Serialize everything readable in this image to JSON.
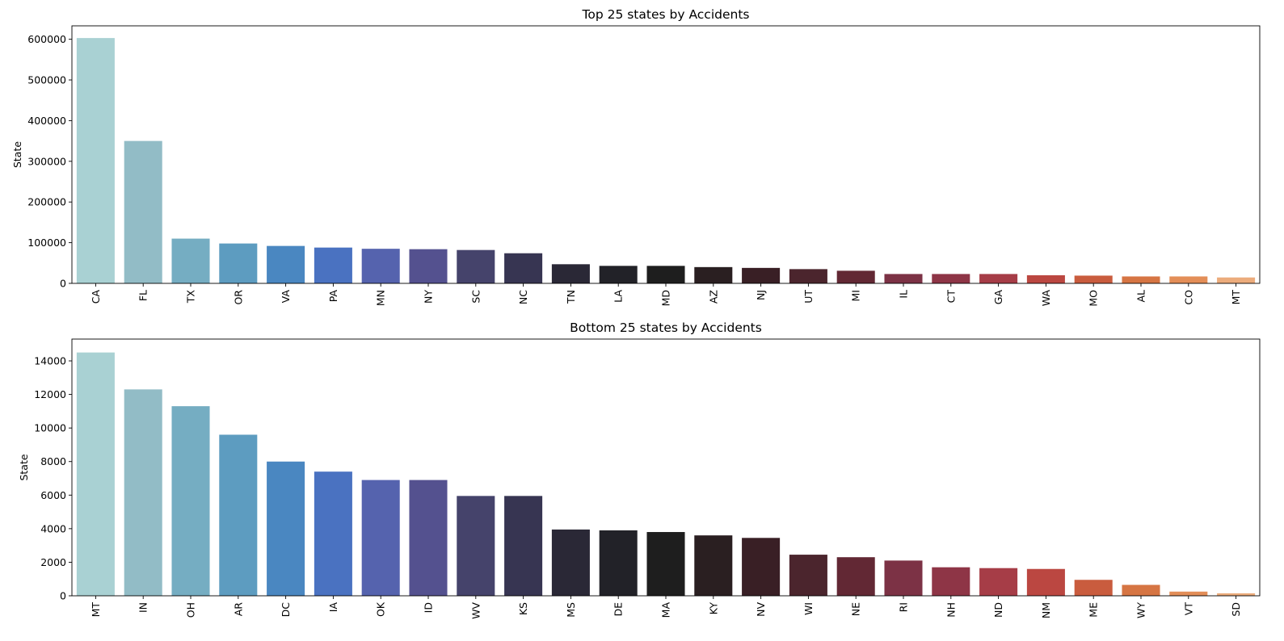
{
  "chart_data": [
    {
      "type": "bar",
      "title": "Top 25 states by Accidents",
      "xlabel": "",
      "ylabel": "State",
      "ylim": [
        0,
        633000
      ],
      "yticks": [
        0,
        100000,
        200000,
        300000,
        400000,
        500000,
        600000
      ],
      "grid": false,
      "categories": [
        "CA",
        "FL",
        "TX",
        "OR",
        "VA",
        "PA",
        "MN",
        "NY",
        "SC",
        "NC",
        "TN",
        "LA",
        "MD",
        "AZ",
        "NJ",
        "UT",
        "MI",
        "IL",
        "CT",
        "GA",
        "WA",
        "MO",
        "AL",
        "CO",
        "MT"
      ],
      "values": [
        603000,
        350000,
        110000,
        98000,
        92000,
        88000,
        85000,
        84000,
        82000,
        74000,
        47000,
        43000,
        43000,
        40000,
        38000,
        35000,
        31000,
        23000,
        23000,
        23000,
        20000,
        19000,
        17000,
        17000,
        14500
      ],
      "colors": [
        "#a9d1d3",
        "#92bcc6",
        "#75adc2",
        "#5d9cc0",
        "#4a87c1",
        "#4a72c1",
        "#5563ae",
        "#54518f",
        "#45436b",
        "#373552",
        "#2a2836",
        "#222228",
        "#1e1e1e",
        "#2a1f21",
        "#391f25",
        "#4b252d",
        "#622834",
        "#7c3245",
        "#8e3546",
        "#a63d47",
        "#bb4741",
        "#c95c3e",
        "#d67543",
        "#e38e58",
        "#ecac7c"
      ]
    },
    {
      "type": "bar",
      "title": "Bottom 25 states by Accidents",
      "xlabel": "",
      "ylabel": "State",
      "ylim": [
        0,
        15300
      ],
      "yticks": [
        0,
        2000,
        4000,
        6000,
        8000,
        10000,
        12000,
        14000
      ],
      "grid": false,
      "categories": [
        "MT",
        "IN",
        "OH",
        "AR",
        "DC",
        "IA",
        "OK",
        "ID",
        "WV",
        "KS",
        "MS",
        "DE",
        "MA",
        "KY",
        "NV",
        "WI",
        "NE",
        "RI",
        "NH",
        "ND",
        "NM",
        "ME",
        "WY",
        "VT",
        "SD"
      ],
      "values": [
        14500,
        12300,
        11300,
        9600,
        8000,
        7400,
        6900,
        6900,
        5950,
        5950,
        3950,
        3900,
        3800,
        3600,
        3450,
        2450,
        2300,
        2100,
        1700,
        1650,
        1600,
        950,
        650,
        250,
        150
      ],
      "colors": [
        "#a9d1d3",
        "#92bcc6",
        "#75adc2",
        "#5d9cc0",
        "#4a87c1",
        "#4a72c1",
        "#5563ae",
        "#54518f",
        "#45436b",
        "#373552",
        "#2a2836",
        "#222228",
        "#1e1e1e",
        "#2a1f21",
        "#391f25",
        "#4b252d",
        "#622834",
        "#7c3245",
        "#8e3546",
        "#a63d47",
        "#bb4741",
        "#c95c3e",
        "#d67543",
        "#e38e58",
        "#ecac7c"
      ]
    }
  ]
}
